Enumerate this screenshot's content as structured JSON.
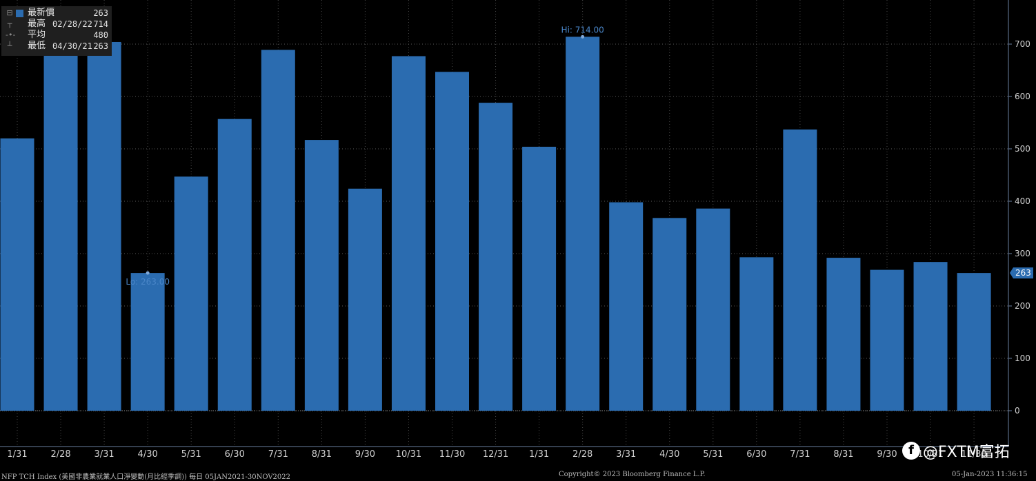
{
  "legend": {
    "rows": [
      {
        "name": "最新價",
        "date": "",
        "value": "263"
      },
      {
        "name": "最高",
        "date": "02/28/22",
        "value": "714"
      },
      {
        "name": "平均",
        "date": "",
        "value": "480"
      },
      {
        "name": "最低",
        "date": "04/30/21",
        "value": "263"
      }
    ]
  },
  "footer": {
    "title": "NFP TCH Index (美國非農業就業人口淨變動(月比經季調)) 每日 05JAN2021-30NOV2022",
    "copyright": "Copyright© 2023 Bloomberg Finance L.P.",
    "timestamp": "05-Jan-2023 11:36:15"
  },
  "watermark": {
    "icon": "f",
    "text": "@FXTM富拓"
  },
  "chart_data": {
    "type": "bar",
    "categories": [
      "1/31",
      "2/28",
      "3/31",
      "4/30",
      "5/31",
      "6/30",
      "7/31",
      "8/31",
      "9/30",
      "10/31",
      "11/30",
      "12/31",
      "1/31",
      "2/28",
      "3/31",
      "4/30",
      "5/31",
      "6/30",
      "7/31",
      "8/31",
      "9/30",
      "10/31",
      "11/30"
    ],
    "values": [
      520,
      710,
      704,
      263,
      447,
      557,
      689,
      517,
      424,
      677,
      647,
      588,
      504,
      714,
      398,
      368,
      386,
      293,
      537,
      292,
      269,
      284,
      263
    ],
    "ylim": [
      0,
      780
    ],
    "yticks": [
      0,
      100,
      200,
      300,
      400,
      500,
      600,
      700
    ],
    "grid": true,
    "bar_color": "#2b6cb0",
    "annotations": {
      "high": {
        "label": "Hi: 714.00",
        "index": 13
      },
      "low": {
        "label": "Lo: 263.00",
        "index": 3
      },
      "last": {
        "label": "263"
      }
    }
  }
}
